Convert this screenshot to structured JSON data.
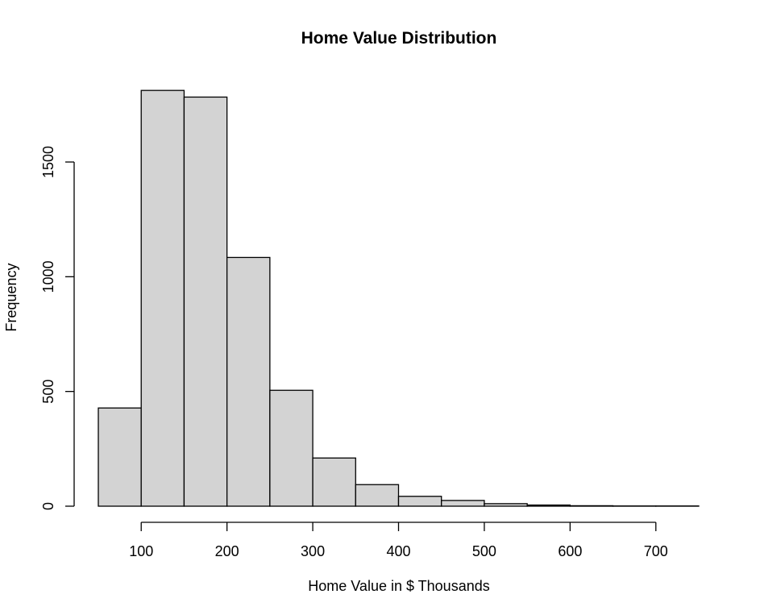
{
  "chart_data": {
    "type": "bar",
    "title": "Home Value Distribution",
    "xlabel": "Home Value in $ Thousands",
    "ylabel": "Frequency",
    "bin_edges": [
      50,
      100,
      150,
      200,
      250,
      300,
      350,
      400,
      450,
      500,
      550,
      600,
      650,
      700,
      750
    ],
    "values": [
      428,
      1812,
      1783,
      1084,
      505,
      210,
      94,
      43,
      25,
      11,
      5,
      2,
      1,
      1
    ],
    "xticks": [
      100,
      200,
      300,
      400,
      500,
      600,
      700
    ],
    "yticks": [
      0,
      500,
      1000,
      1500
    ],
    "ylim": [
      0,
      1850
    ],
    "grid": false,
    "bar_color": "#d3d3d3",
    "edge_color": "#000000"
  }
}
